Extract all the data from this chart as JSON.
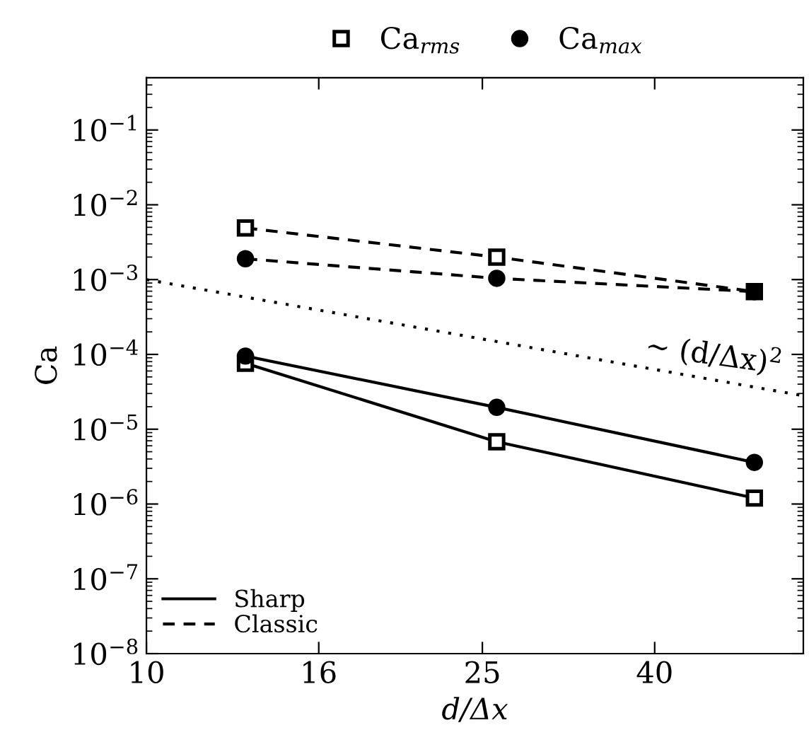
{
  "chart_data": {
    "type": "line",
    "xlabel": "d/Δx",
    "ylabel": "Ca",
    "log": "xy",
    "xlim": [
      10,
      60
    ],
    "ylim": [
      1e-08,
      0.5
    ],
    "xticks": [
      10,
      16,
      25,
      40
    ],
    "yticks": [
      {
        "value": 1e-08,
        "label": "10$^{−8}$"
      },
      {
        "value": 1e-07,
        "label": "10$^{−7}$"
      },
      {
        "value": 1e-06,
        "label": "10$^{−6}$"
      },
      {
        "value": 1e-05,
        "label": "10$^{−5}$"
      },
      {
        "value": 0.0001,
        "label": "10$^{−4}$"
      },
      {
        "value": 0.001,
        "label": "10$^{−3}$"
      },
      {
        "value": 0.01,
        "label": "10$^{−2}$"
      },
      {
        "value": 0.1,
        "label": "10$^{−1}$"
      }
    ],
    "grid": false,
    "legend": "bottom left",
    "x": [
      13.1,
      26.0,
      52.5
    ],
    "series": [
      {
        "name": "Sharp",
        "color": "#000000",
        "marker": "square",
        "line_style": "solid",
        "values": [
          7.6e-05,
          6.8e-06,
          1.2e-06
        ]
      },
      {
        "color": "#000000",
        "marker": "circle",
        "line_style": "solid",
        "values": [
          9.5e-05,
          1.96e-05,
          3.6e-06
        ]
      },
      {
        "name": "Classic",
        "color": "#000000",
        "marker": "square",
        "line_style": "dashed",
        "values": [
          0.0049,
          0.002,
          0.00069
        ]
      },
      {
        "color": "#000000",
        "marker": "circle",
        "line_style": "dashed",
        "values": [
          0.0019,
          0.00104,
          0.00069
        ]
      },
      {
        "color": "#000000",
        "marker": "none",
        "line_style": "dotted",
        "x": [
          10,
          60
        ],
        "values": [
          0.001,
          2.8e-05
        ]
      }
    ],
    "annotations": [
      "Ca$_{rms}$",
      "Ca$_{max}$",
      {
        "text": "∼ (d/Δx)$^{2}$",
        "x": 47,
        "y": 4.5e-05
      }
    ]
  }
}
